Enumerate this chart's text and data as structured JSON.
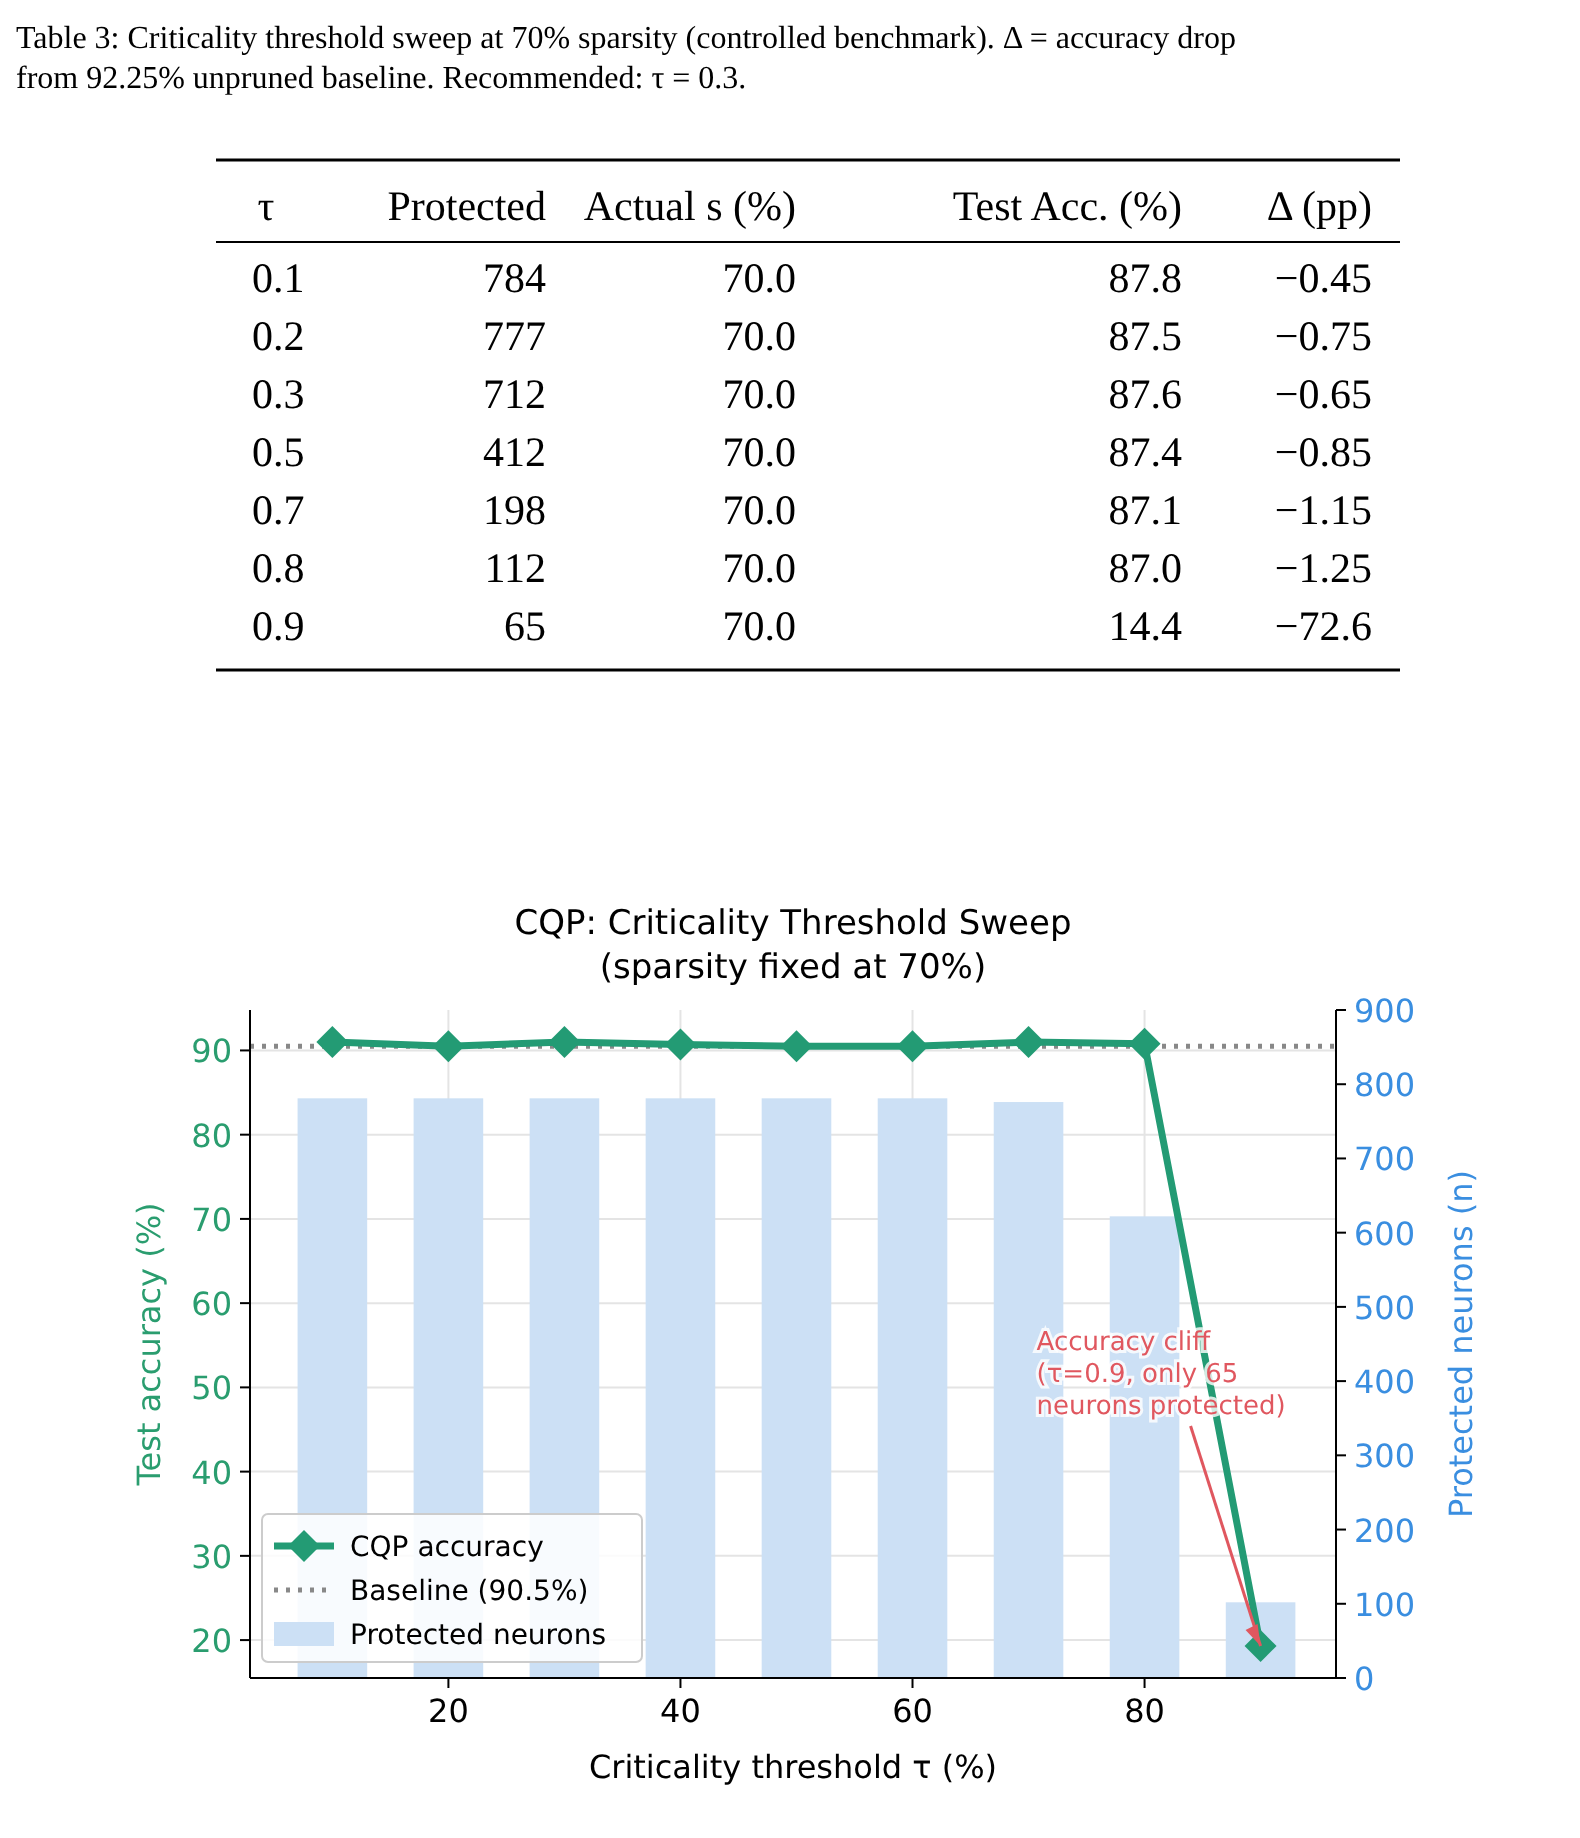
{
  "chart_data": [
    {
      "type": "other",
      "title": "Table 3: Criticality threshold sweep at 70% sparsity (controlled benchmark). Δ = accuracy drop from 92.25% unpruned baseline. Recommended: τ = 0.3.",
      "categories": [
        "τ",
        "Protected",
        "Actual s (%)",
        "Test Acc. (%)",
        "Δ (pp)"
      ],
      "cell_labels": [
        [
          "0.1",
          "784",
          "70.0",
          "87.8",
          "−0.45"
        ],
        [
          "0.2",
          "777",
          "70.0",
          "87.5",
          "−0.75"
        ],
        [
          "0.3",
          "712",
          "70.0",
          "87.6",
          "−0.65"
        ],
        [
          "0.5",
          "412",
          "70.0",
          "87.4",
          "−0.85"
        ],
        [
          "0.7",
          "198",
          "70.0",
          "87.1",
          "−1.15"
        ],
        [
          "0.8",
          "112",
          "70.0",
          "87.0",
          "−1.25"
        ],
        [
          "0.9",
          "65",
          "70.0",
          "14.4",
          "−72.6"
        ]
      ]
    },
    {
      "type": "line",
      "title": "CQP: Criticality Threshold Sweep",
      "subtitle": "(sparsity fixed at 70%)",
      "xlabel": "Criticality threshold τ (%)",
      "ylabel": "Test accuracy (%)",
      "y2label": "Protected neurons (n)",
      "x": [
        10,
        20,
        30,
        40,
        50,
        60,
        70,
        80,
        90
      ],
      "series": [
        {
          "name": "Protected neurons",
          "type": "bar",
          "axis": "y2",
          "color": "#cce0f5",
          "values": [
            781,
            781,
            781,
            781,
            781,
            781,
            776,
            622,
            102
          ]
        },
        {
          "name": "CQP accuracy",
          "type": "line",
          "color": "#239b74",
          "values": [
            91.0,
            90.5,
            91.0,
            90.7,
            90.5,
            90.5,
            91.0,
            90.8,
            19.3
          ]
        }
      ],
      "ref_lines": [
        {
          "axis": "y",
          "value": 90.5,
          "label": "Baseline (90.5%)",
          "color": "#888888",
          "line_style": "dotted"
        }
      ],
      "annotations": [
        {
          "text": "Accuracy cliff\n(τ=0.9, only 65\nneurons protected)",
          "x": 90,
          "y": 19.3
        }
      ],
      "xlim": [
        2.9,
        96.5
      ],
      "xticks": [
        20,
        40,
        60,
        80
      ],
      "ylim": [
        15.5,
        94.8
      ],
      "yticks": [
        20,
        30,
        40,
        50,
        60,
        70,
        80,
        90
      ],
      "y2lim": [
        0,
        900
      ],
      "y2ticks": [
        0,
        100,
        200,
        300,
        400,
        500,
        600,
        700,
        800,
        900
      ],
      "grid": true,
      "legend": "bottom left",
      "marker": "diamond",
      "line_style": "solid"
    }
  ]
}
